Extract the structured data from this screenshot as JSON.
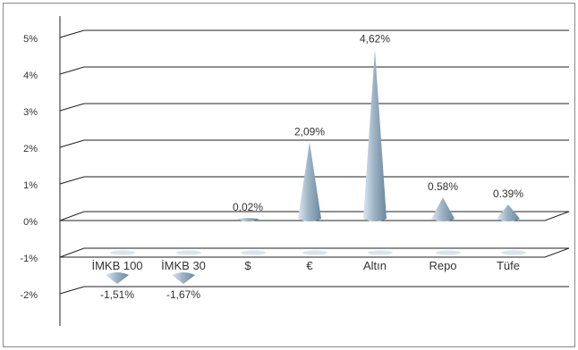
{
  "chart_data": {
    "type": "bar",
    "title": "",
    "xlabel": "",
    "ylabel": "",
    "y_unit": "%",
    "ylim": [
      -2,
      5
    ],
    "y_ticks": [
      "5%",
      "4%",
      "3%",
      "2%",
      "1%",
      "0%",
      "-1%",
      "-2%"
    ],
    "categories": [
      "İMKB 100",
      "İMKB 30",
      "$",
      "€",
      "Altın",
      "Repo",
      "Tüfe"
    ],
    "values": [
      -1.51,
      -1.67,
      0.02,
      2.09,
      4.62,
      0.58,
      0.39
    ],
    "value_labels": [
      "-1,51%",
      "-1,67%",
      "0,02%",
      "2,09%",
      "4,62%",
      "0.58%",
      "0.39%"
    ],
    "grid": true,
    "legend": "none",
    "colors": {
      "cone_light": "#eef2f7",
      "cone_mid": "#a9bccc",
      "cone_dark": "#6c889e",
      "grid": "#222222"
    }
  }
}
